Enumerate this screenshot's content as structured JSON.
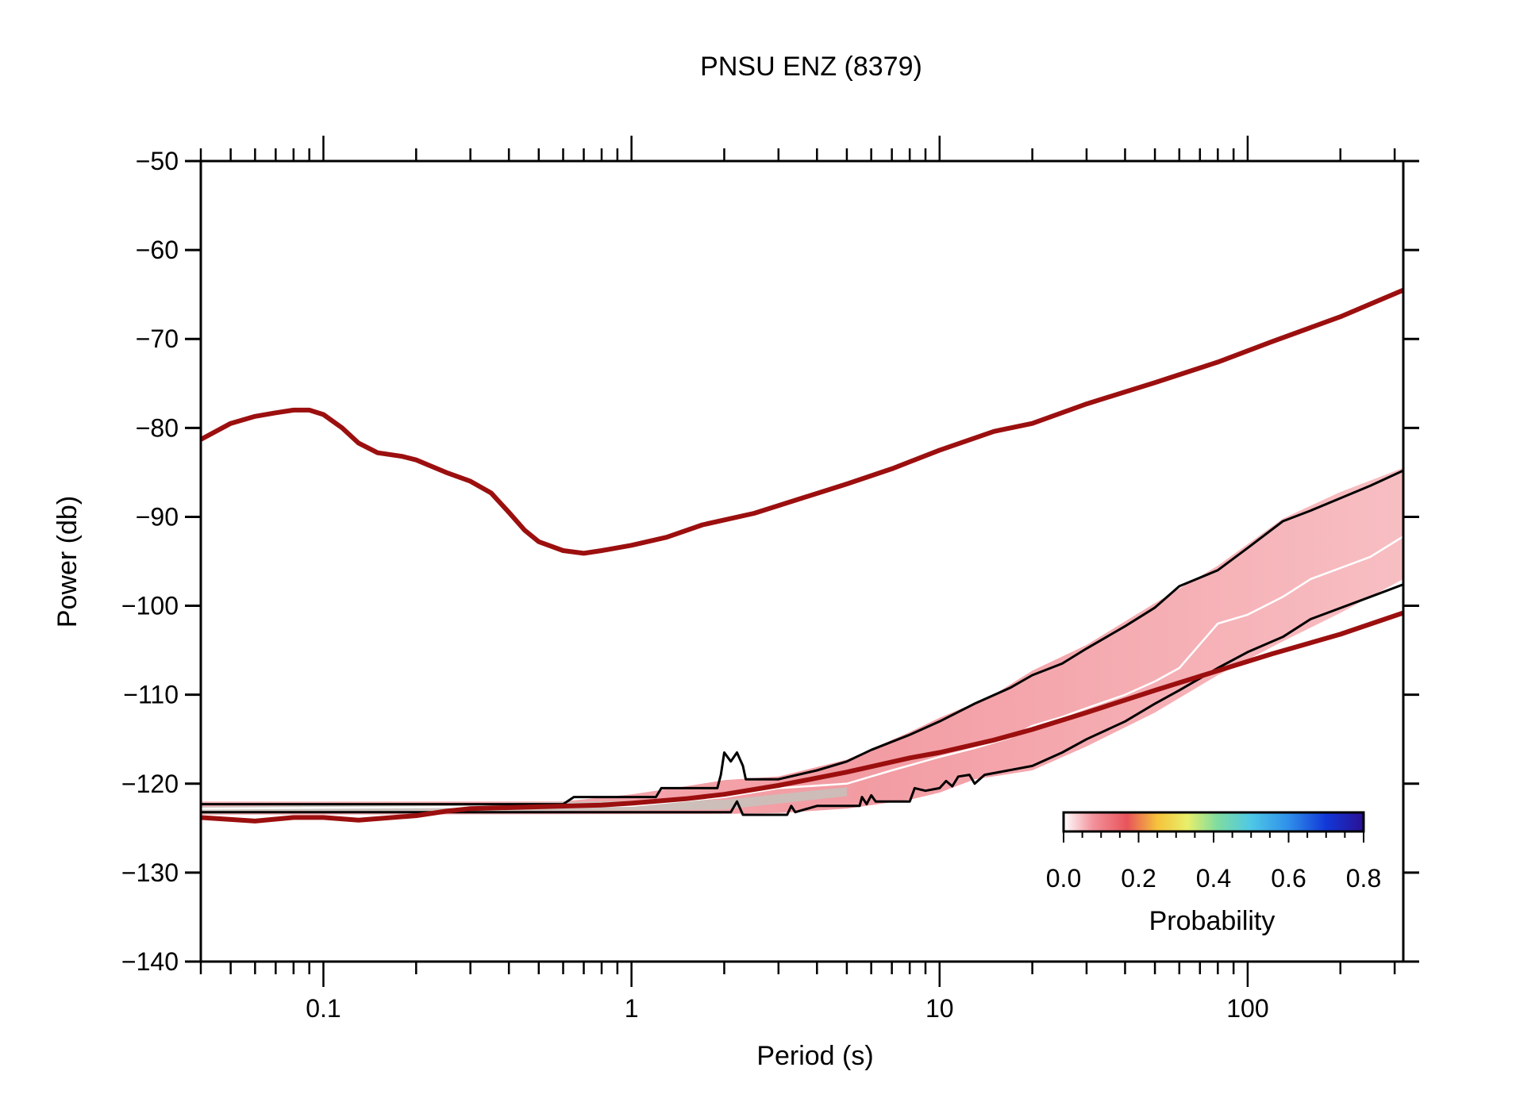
{
  "chart_data": {
    "type": "line",
    "title": "PNSU ENZ (8379)",
    "xlabel": "Period (s)",
    "ylabel": "Power (db)",
    "xscale": "log",
    "xlim": [
      0.04,
      320
    ],
    "ylim": [
      -140,
      -50
    ],
    "grid": false,
    "x_ticks": [
      {
        "value": 0.1,
        "label": "0.1"
      },
      {
        "value": 1,
        "label": "1"
      },
      {
        "value": 10,
        "label": "10"
      },
      {
        "value": 100,
        "label": "100"
      }
    ],
    "y_ticks": [
      {
        "value": -50,
        "label": "−50"
      },
      {
        "value": -60,
        "label": "−60"
      },
      {
        "value": -70,
        "label": "−70"
      },
      {
        "value": -80,
        "label": "−80"
      },
      {
        "value": -90,
        "label": "−90"
      },
      {
        "value": -100,
        "label": "−100"
      },
      {
        "value": -110,
        "label": "−110"
      },
      {
        "value": -120,
        "label": "−120"
      },
      {
        "value": -130,
        "label": "−130"
      },
      {
        "value": -140,
        "label": "−140"
      }
    ],
    "colors": {
      "noise_model": "#9c0f0f",
      "percentile": "#000000",
      "mode": "#ffffff",
      "density": "#f4a3a8"
    },
    "series": [
      {
        "key": "high_noise_model",
        "color": "#9c0f0f",
        "points": [
          [
            0.04,
            -81.3
          ],
          [
            0.05,
            -79.5
          ],
          [
            0.06,
            -78.7
          ],
          [
            0.07,
            -78.3
          ],
          [
            0.08,
            -78.0
          ],
          [
            0.09,
            -78.0
          ],
          [
            0.1,
            -78.5
          ],
          [
            0.115,
            -80.0
          ],
          [
            0.13,
            -81.7
          ],
          [
            0.15,
            -82.8
          ],
          [
            0.18,
            -83.2
          ],
          [
            0.2,
            -83.6
          ],
          [
            0.25,
            -85.0
          ],
          [
            0.3,
            -86.0
          ],
          [
            0.35,
            -87.3
          ],
          [
            0.4,
            -89.5
          ],
          [
            0.45,
            -91.5
          ],
          [
            0.5,
            -92.8
          ],
          [
            0.6,
            -93.8
          ],
          [
            0.7,
            -94.1
          ],
          [
            0.8,
            -93.8
          ],
          [
            1.0,
            -93.2
          ],
          [
            1.3,
            -92.3
          ],
          [
            1.7,
            -90.9
          ],
          [
            2.5,
            -89.6
          ],
          [
            3.5,
            -88.0
          ],
          [
            5,
            -86.3
          ],
          [
            7,
            -84.6
          ],
          [
            10,
            -82.5
          ],
          [
            15,
            -80.4
          ],
          [
            20,
            -79.5
          ],
          [
            30,
            -77.3
          ],
          [
            50,
            -74.9
          ],
          [
            80,
            -72.6
          ],
          [
            120,
            -70.3
          ],
          [
            200,
            -67.5
          ],
          [
            320,
            -64.5
          ]
        ]
      },
      {
        "key": "low_noise_model",
        "color": "#9c0f0f",
        "points": [
          [
            0.04,
            -123.8
          ],
          [
            0.06,
            -124.2
          ],
          [
            0.08,
            -123.8
          ],
          [
            0.1,
            -123.8
          ],
          [
            0.13,
            -124.1
          ],
          [
            0.2,
            -123.6
          ],
          [
            0.25,
            -123.1
          ],
          [
            0.3,
            -122.8
          ],
          [
            0.5,
            -122.6
          ],
          [
            0.8,
            -122.4
          ],
          [
            1.0,
            -122.2
          ],
          [
            1.5,
            -121.7
          ],
          [
            2,
            -121.2
          ],
          [
            3,
            -120.2
          ],
          [
            5,
            -118.7
          ],
          [
            8,
            -117.1
          ],
          [
            10,
            -116.5
          ],
          [
            15,
            -115.1
          ],
          [
            20,
            -113.9
          ],
          [
            30,
            -112.0
          ],
          [
            50,
            -109.5
          ],
          [
            80,
            -107.3
          ],
          [
            120,
            -105.4
          ],
          [
            200,
            -103.2
          ],
          [
            320,
            -100.8
          ]
        ]
      },
      {
        "key": "upper_percentile",
        "color": "#000000",
        "points": [
          [
            0.04,
            -122.3
          ],
          [
            0.6,
            -122.3
          ],
          [
            0.65,
            -121.5
          ],
          [
            1.2,
            -121.5
          ],
          [
            1.25,
            -120.5
          ],
          [
            1.9,
            -120.5
          ],
          [
            1.95,
            -119.0
          ],
          [
            2.0,
            -116.5
          ],
          [
            2.1,
            -117.5
          ],
          [
            2.2,
            -116.5
          ],
          [
            2.3,
            -118.0
          ],
          [
            2.35,
            -119.5
          ],
          [
            3,
            -119.5
          ],
          [
            4,
            -118.5
          ],
          [
            5,
            -117.5
          ],
          [
            6,
            -116.2
          ],
          [
            8,
            -114.5
          ],
          [
            10,
            -113.0
          ],
          [
            13,
            -111.0
          ],
          [
            17,
            -109.2
          ],
          [
            20,
            -107.8
          ],
          [
            25,
            -106.5
          ],
          [
            30,
            -104.8
          ],
          [
            40,
            -102.3
          ],
          [
            50,
            -100.2
          ],
          [
            60,
            -97.8
          ],
          [
            80,
            -96.0
          ],
          [
            100,
            -93.5
          ],
          [
            130,
            -90.5
          ],
          [
            160,
            -89.3
          ],
          [
            250,
            -86.5
          ],
          [
            320,
            -84.8
          ]
        ]
      },
      {
        "key": "lower_percentile",
        "color": "#000000",
        "points": [
          [
            0.04,
            -123.2
          ],
          [
            2.1,
            -123.2
          ],
          [
            2.2,
            -122.0
          ],
          [
            2.3,
            -123.5
          ],
          [
            3.2,
            -123.5
          ],
          [
            3.3,
            -122.5
          ],
          [
            3.4,
            -123.2
          ],
          [
            4,
            -122.5
          ],
          [
            5.5,
            -122.5
          ],
          [
            5.6,
            -121.5
          ],
          [
            5.8,
            -122.3
          ],
          [
            6,
            -121.3
          ],
          [
            6.2,
            -122.0
          ],
          [
            8,
            -122.0
          ],
          [
            8.3,
            -120.5
          ],
          [
            9,
            -120.8
          ],
          [
            10,
            -120.5
          ],
          [
            10.5,
            -119.7
          ],
          [
            11,
            -120.3
          ],
          [
            11.5,
            -119.2
          ],
          [
            12.5,
            -119.0
          ],
          [
            13,
            -120.0
          ],
          [
            14,
            -119.0
          ],
          [
            20,
            -118.0
          ],
          [
            25,
            -116.5
          ],
          [
            30,
            -115.0
          ],
          [
            40,
            -113.0
          ],
          [
            50,
            -111.0
          ],
          [
            60,
            -109.5
          ],
          [
            80,
            -107.0
          ],
          [
            100,
            -105.2
          ],
          [
            130,
            -103.5
          ],
          [
            160,
            -101.5
          ],
          [
            250,
            -99.0
          ],
          [
            320,
            -97.6
          ]
        ]
      },
      {
        "key": "mode",
        "color": "#ffffff",
        "points": [
          [
            0.04,
            -122.8
          ],
          [
            1,
            -122.5
          ],
          [
            2,
            -121.5
          ],
          [
            3,
            -120.5
          ],
          [
            5,
            -120.0
          ],
          [
            7,
            -118.5
          ],
          [
            10,
            -117.0
          ],
          [
            13,
            -116.0
          ],
          [
            17,
            -114.8
          ],
          [
            20,
            -113.5
          ],
          [
            25,
            -112.5
          ],
          [
            30,
            -111.5
          ],
          [
            40,
            -110.0
          ],
          [
            50,
            -108.5
          ],
          [
            60,
            -107.0
          ],
          [
            80,
            -102.0
          ],
          [
            100,
            -101.0
          ],
          [
            130,
            -99.0
          ],
          [
            160,
            -97.0
          ],
          [
            250,
            -94.5
          ],
          [
            320,
            -92.2
          ]
        ]
      }
    ],
    "density_band": {
      "lower": [
        [
          0.04,
          -123.5
        ],
        [
          2,
          -123.4
        ],
        [
          3,
          -123.3
        ],
        [
          5,
          -122.8
        ],
        [
          8,
          -121.8
        ],
        [
          10,
          -121.0
        ],
        [
          13,
          -119.5
        ],
        [
          20,
          -118.5
        ],
        [
          30,
          -115.8
        ],
        [
          50,
          -112.0
        ],
        [
          80,
          -107.8
        ],
        [
          130,
          -104.0
        ],
        [
          200,
          -100.8
        ],
        [
          320,
          -97.0
        ]
      ],
      "upper": [
        [
          0.04,
          -122.0
        ],
        [
          0.6,
          -122.0
        ],
        [
          1,
          -121.2
        ],
        [
          1.5,
          -120.3
        ],
        [
          2,
          -119.6
        ],
        [
          3,
          -119.2
        ],
        [
          5,
          -117.3
        ],
        [
          8,
          -114.2
        ],
        [
          10,
          -112.6
        ],
        [
          15,
          -110.0
        ],
        [
          20,
          -107.3
        ],
        [
          30,
          -104.4
        ],
        [
          50,
          -99.7
        ],
        [
          80,
          -95.5
        ],
        [
          130,
          -90.2
        ],
        [
          200,
          -87.2
        ],
        [
          320,
          -84.5
        ]
      ]
    },
    "colorbar": {
      "label": "Probability",
      "range": [
        0,
        0.8
      ],
      "ticks": [
        {
          "value": 0.0,
          "label": "0.0"
        },
        {
          "value": 0.2,
          "label": "0.2"
        },
        {
          "value": 0.4,
          "label": "0.4"
        },
        {
          "value": 0.6,
          "label": "0.6"
        },
        {
          "value": 0.8,
          "label": "0.8"
        }
      ],
      "stops": [
        {
          "value": 0.0,
          "color": "#ffffff"
        },
        {
          "value": 0.08,
          "color": "#f2909a"
        },
        {
          "value": 0.17,
          "color": "#e8545a"
        },
        {
          "value": 0.25,
          "color": "#f5c33c"
        },
        {
          "value": 0.33,
          "color": "#e9ef6a"
        },
        {
          "value": 0.41,
          "color": "#7fdca0"
        },
        {
          "value": 0.5,
          "color": "#4ec8e6"
        },
        {
          "value": 0.6,
          "color": "#2f8fea"
        },
        {
          "value": 0.7,
          "color": "#1238d8"
        },
        {
          "value": 0.8,
          "color": "#2a1194"
        }
      ]
    }
  }
}
